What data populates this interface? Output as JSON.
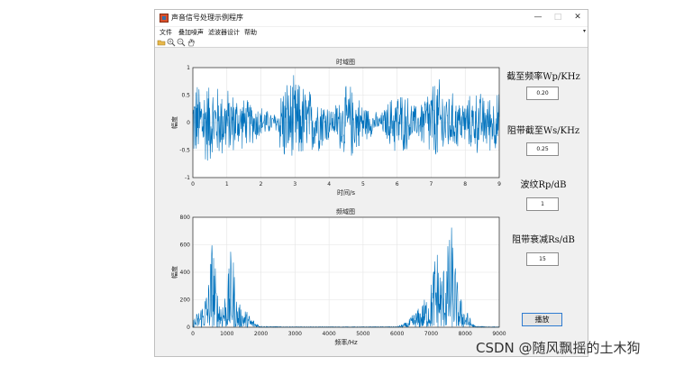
{
  "window": {
    "title": "声音信号处理示例程序",
    "minimize": "—",
    "maximize": "□",
    "close": "✕"
  },
  "menu": {
    "items": [
      "文件",
      "叠加噪声",
      "滤波器设计",
      "帮助"
    ],
    "overflow": "▾"
  },
  "toolbar": {
    "icons": [
      "folder-open-icon",
      "zoom-in-icon",
      "zoom-out-icon",
      "pan-icon"
    ]
  },
  "panel": {
    "wp_label": "截至频率Wp/KHz",
    "wp_value": "0.20",
    "ws_label": "阻带截至Ws/KHz",
    "ws_value": "0.25",
    "rp_label": "波纹Rp/dB",
    "rp_value": "1",
    "rs_label": "阻带衰减Rs/dB",
    "rs_value": "15",
    "play_label": "播放"
  },
  "chart_data": [
    {
      "type": "line",
      "title": "时域图",
      "xlabel": "时间/s",
      "ylabel": "幅度",
      "xlim": [
        0,
        9
      ],
      "ylim": [
        -1,
        1
      ],
      "x_ticks": [
        "0",
        "1",
        "2",
        "3",
        "4",
        "5",
        "6",
        "7",
        "8",
        "9"
      ],
      "y_ticks": [
        "-1",
        "-0.5",
        "0",
        "0.5",
        "1"
      ],
      "grid": true,
      "color": "#0072bd",
      "envelope": {
        "x": [
          0,
          0.3,
          0.6,
          1.0,
          1.5,
          2.0,
          2.3,
          2.5,
          2.6,
          3.0,
          3.5,
          3.9,
          4.1,
          4.3,
          4.6,
          4.8,
          5.1,
          5.5,
          5.8,
          6.0,
          6.3,
          6.6,
          6.9,
          7.2,
          7.6,
          8.0,
          8.3,
          8.6,
          9.0
        ],
        "amplitude": [
          0.75,
          0.9,
          0.78,
          0.7,
          0.5,
          0.35,
          0.2,
          0.2,
          0.85,
          0.9,
          0.65,
          0.5,
          0.25,
          0.55,
          0.8,
          0.6,
          0.35,
          0.15,
          0.5,
          0.7,
          0.55,
          0.3,
          0.75,
          0.9,
          0.6,
          0.45,
          0.65,
          0.55,
          0.6
        ]
      }
    },
    {
      "type": "line",
      "title": "频域图",
      "xlabel": "频率/Hz",
      "ylabel": "幅度",
      "xlim": [
        0,
        9000
      ],
      "ylim": [
        0,
        800
      ],
      "x_ticks": [
        "0",
        "1000",
        "2000",
        "3000",
        "4000",
        "5000",
        "6000",
        "7000",
        "8000",
        "9000"
      ],
      "y_ticks": [
        "0",
        "200",
        "400",
        "600",
        "800"
      ],
      "grid": true,
      "color": "#0072bd",
      "envelope": {
        "x": [
          0,
          150,
          300,
          450,
          580,
          700,
          850,
          1000,
          1150,
          1300,
          1500,
          1700,
          1900,
          2000,
          2500,
          3000,
          4000,
          5000,
          6000,
          6300,
          6500,
          6700,
          6900,
          7000,
          7150,
          7300,
          7450,
          7600,
          7800,
          8000,
          8200,
          8300,
          9000
        ],
        "peak": [
          60,
          120,
          200,
          330,
          740,
          300,
          220,
          310,
          640,
          180,
          150,
          80,
          30,
          8,
          5,
          4,
          4,
          4,
          5,
          40,
          110,
          160,
          260,
          340,
          640,
          420,
          560,
          750,
          260,
          150,
          40,
          8,
          3
        ]
      }
    }
  ],
  "watermark": "CSDN @随风飘摇的土木狗"
}
